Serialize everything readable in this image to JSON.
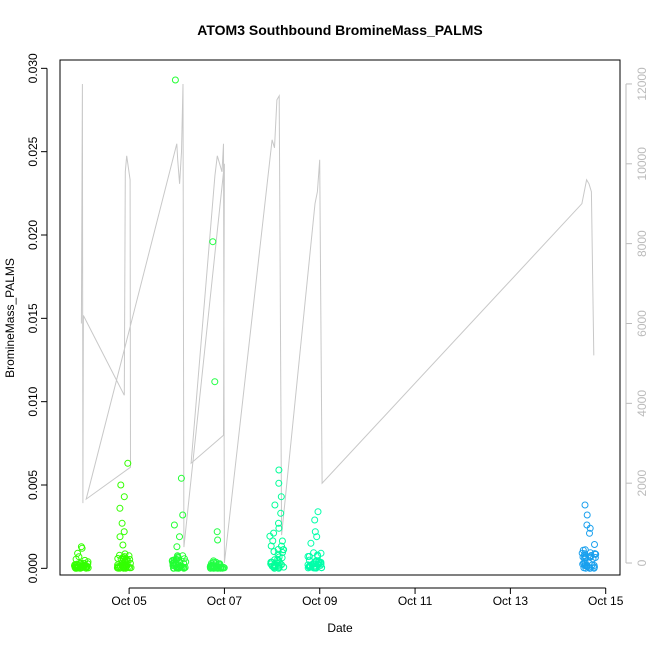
{
  "chart_data": {
    "type": "scatter",
    "title": "ATOM3 Southbound BromineMass_PALMS",
    "xlabel": "Date",
    "ylabel": "BromineMass_PALMS",
    "x_tick_labels": [
      "Oct 05",
      "Oct 07",
      "Oct 09",
      "Oct 11",
      "Oct 13",
      "Oct 15"
    ],
    "x_tick_days": [
      5,
      7,
      9,
      11,
      13,
      15
    ],
    "xlim_days": [
      3.55,
      15.3
    ],
    "ylim": [
      -0.0004,
      0.0305
    ],
    "y_ticks": [
      "0.000",
      "0.005",
      "0.010",
      "0.015",
      "0.020",
      "0.025",
      "0.030"
    ],
    "y2_ticks": [
      "0",
      "2000",
      "4000",
      "6000",
      "8000",
      "10000",
      "12000"
    ],
    "y2lim": [
      -300,
      12600
    ],
    "grid": false,
    "legend": "none",
    "colors": {
      "altitude_line": "#c8c8c8",
      "points_early": "#22ee00",
      "points_mid": "#00ee66",
      "points_late": "#00eeaa",
      "points_last": "#1aa0ee",
      "right_axis": "#bbbbbb"
    },
    "point_groups": [
      {
        "day": 4.0,
        "color": "#33ff00",
        "outliers": [
          0.0013,
          0.0012,
          0.0009,
          0.0007
        ],
        "base_max": 0.0006
      },
      {
        "day": 4.9,
        "color": "#33ff00",
        "outliers": [
          0.0063,
          0.005,
          0.0043,
          0.0036,
          0.0027,
          0.0022,
          0.0019,
          0.0014
        ],
        "base_max": 0.0012
      },
      {
        "day": 6.05,
        "color": "#22ff33",
        "outliers": [
          0.0293,
          0.0054,
          0.0032,
          0.0026,
          0.0019,
          0.0013
        ],
        "base_max": 0.0009
      },
      {
        "day": 6.85,
        "color": "#22ff44",
        "outliers": [
          0.0196,
          0.0112,
          0.0022,
          0.0017
        ],
        "base_max": 0.0006
      },
      {
        "day": 8.1,
        "color": "#00ff99",
        "outliers": [
          0.0059,
          0.0051,
          0.0043,
          0.0038,
          0.0033,
          0.0027,
          0.0024
        ],
        "base_max": 0.0022
      },
      {
        "day": 8.9,
        "color": "#00ffaa",
        "outliers": [
          0.0034,
          0.0029,
          0.0022,
          0.0019,
          0.0015
        ],
        "base_max": 0.0013
      },
      {
        "day": 14.65,
        "color": "#1aa0ee",
        "outliers": [
          0.0038,
          0.0032,
          0.0026,
          0.0024,
          0.0021
        ],
        "base_max": 0.0018
      }
    ],
    "altitude_series": [
      [
        4.0,
        6000
      ],
      [
        4.02,
        12000
      ],
      [
        4.03,
        1500
      ],
      [
        4.04,
        6200
      ],
      [
        4.9,
        4200
      ],
      [
        4.92,
        9800
      ],
      [
        4.95,
        10200
      ],
      [
        5.02,
        9600
      ],
      [
        5.03,
        2400
      ],
      [
        4.1,
        1600
      ],
      [
        6.0,
        10500
      ],
      [
        6.02,
        10100
      ],
      [
        6.06,
        9500
      ],
      [
        6.1,
        10300
      ],
      [
        6.13,
        12000
      ],
      [
        6.15,
        400
      ],
      [
        7.0,
        10000
      ],
      [
        6.98,
        3200
      ],
      [
        6.3,
        2500
      ],
      [
        6.8,
        9700
      ],
      [
        6.85,
        10200
      ],
      [
        6.95,
        9800
      ],
      [
        6.98,
        10500
      ],
      [
        7.0,
        0
      ],
      [
        8.0,
        10600
      ],
      [
        8.05,
        10400
      ],
      [
        8.1,
        11600
      ],
      [
        8.15,
        11700
      ],
      [
        8.2,
        700
      ],
      [
        8.9,
        9000
      ],
      [
        8.95,
        9300
      ],
      [
        9.0,
        10100
      ],
      [
        9.05,
        2000
      ],
      [
        14.5,
        9000
      ],
      [
        14.6,
        9600
      ],
      [
        14.65,
        9500
      ],
      [
        14.7,
        9300
      ],
      [
        14.75,
        5200
      ]
    ]
  }
}
